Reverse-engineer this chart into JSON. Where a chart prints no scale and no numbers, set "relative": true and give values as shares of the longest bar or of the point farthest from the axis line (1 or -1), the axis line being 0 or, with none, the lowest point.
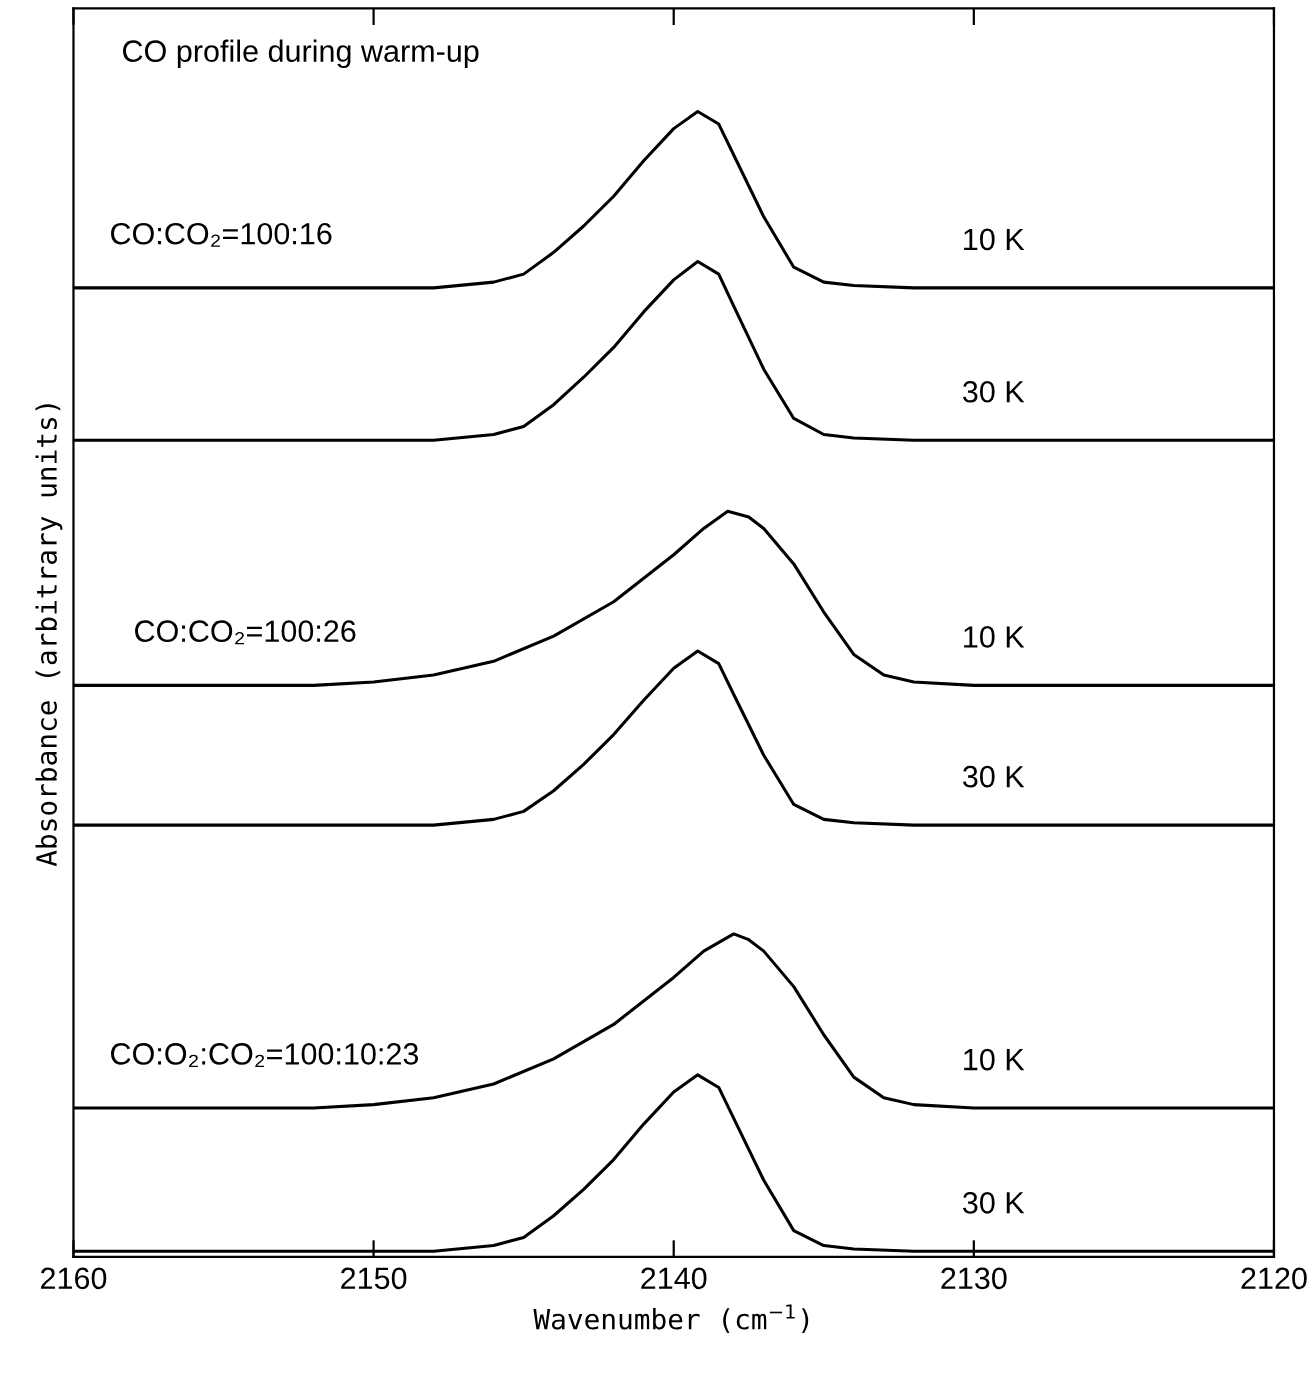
{
  "chart_data": {
    "type": "line",
    "relative": true,
    "xlabel": "Wavenumber (cm$^{−1}$)",
    "ylabel": "Absorbance (arbitrary units)",
    "xlim": [
      2160,
      2120
    ],
    "xticks": [
      2160,
      2150,
      2140,
      2130,
      2120
    ],
    "grid": false,
    "legend": false,
    "marker": "none",
    "line_style": "solid",
    "tick_labels": "x",
    "series": [
      {
        "color": "#000000",
        "x": [
          2160,
          2148,
          2146,
          2145,
          2144,
          2143,
          2142,
          2141,
          2140,
          2139.2,
          2138.5,
          2138,
          2137,
          2136,
          2135,
          2134,
          2132,
          2120
        ],
        "values": [
          0.846,
          0.846,
          0.851,
          0.858,
          0.877,
          0.9,
          0.926,
          0.957,
          0.985,
          1.0,
          0.989,
          0.962,
          0.908,
          0.864,
          0.851,
          0.848,
          0.846,
          0.846
        ]
      },
      {
        "color": "#000000",
        "x": [
          2160,
          2148,
          2146,
          2145,
          2144,
          2143,
          2142,
          2141,
          2140,
          2139.2,
          2138.5,
          2138,
          2137,
          2136,
          2135,
          2134,
          2132,
          2120
        ],
        "values": [
          0.713,
          0.713,
          0.718,
          0.725,
          0.744,
          0.768,
          0.794,
          0.825,
          0.853,
          0.869,
          0.858,
          0.83,
          0.775,
          0.732,
          0.718,
          0.715,
          0.713,
          0.713
        ]
      },
      {
        "color": "#000000",
        "x": [
          2160,
          2152,
          2150,
          2148,
          2146,
          2144,
          2142,
          2140,
          2139,
          2138.2,
          2137.5,
          2137,
          2136,
          2135,
          2134,
          2133,
          2132,
          2130,
          2120
        ],
        "values": [
          0.499,
          0.499,
          0.502,
          0.508,
          0.52,
          0.542,
          0.572,
          0.613,
          0.636,
          0.651,
          0.646,
          0.636,
          0.605,
          0.563,
          0.526,
          0.508,
          0.502,
          0.499,
          0.499
        ]
      },
      {
        "color": "#000000",
        "x": [
          2160,
          2148,
          2146,
          2145,
          2144,
          2143,
          2142,
          2141,
          2140,
          2139.2,
          2138.5,
          2138,
          2137,
          2136,
          2135,
          2134,
          2132,
          2120
        ],
        "values": [
          0.377,
          0.377,
          0.382,
          0.389,
          0.407,
          0.43,
          0.456,
          0.486,
          0.514,
          0.529,
          0.518,
          0.491,
          0.438,
          0.395,
          0.382,
          0.379,
          0.377,
          0.377
        ]
      },
      {
        "color": "#000000",
        "x": [
          2160,
          2152,
          2150,
          2148,
          2146,
          2144,
          2142,
          2140,
          2139,
          2138,
          2137.5,
          2137,
          2136,
          2135,
          2134,
          2133,
          2132,
          2130,
          2120
        ],
        "values": [
          0.13,
          0.13,
          0.133,
          0.139,
          0.151,
          0.173,
          0.203,
          0.244,
          0.267,
          0.282,
          0.277,
          0.267,
          0.236,
          0.194,
          0.157,
          0.139,
          0.133,
          0.13,
          0.13
        ]
      },
      {
        "color": "#000000",
        "x": [
          2160,
          2148,
          2146,
          2145,
          2144,
          2143,
          2142,
          2141,
          2140,
          2139.2,
          2138.5,
          2138,
          2137,
          2136,
          2135,
          2134,
          2132,
          2120
        ],
        "values": [
          0.005,
          0.005,
          0.01,
          0.017,
          0.036,
          0.059,
          0.085,
          0.116,
          0.144,
          0.159,
          0.148,
          0.121,
          0.067,
          0.023,
          0.01,
          0.007,
          0.005,
          0.005
        ]
      }
    ],
    "annotations": [
      "CO profile during warm-up",
      "CO:CO₂=100:16",
      "10 K",
      "30 K",
      "CO:CO₂=100:26",
      "10 K",
      "30 K",
      "CO:O₂:CO₂=100:10:23",
      "10 K",
      "30 K"
    ]
  }
}
